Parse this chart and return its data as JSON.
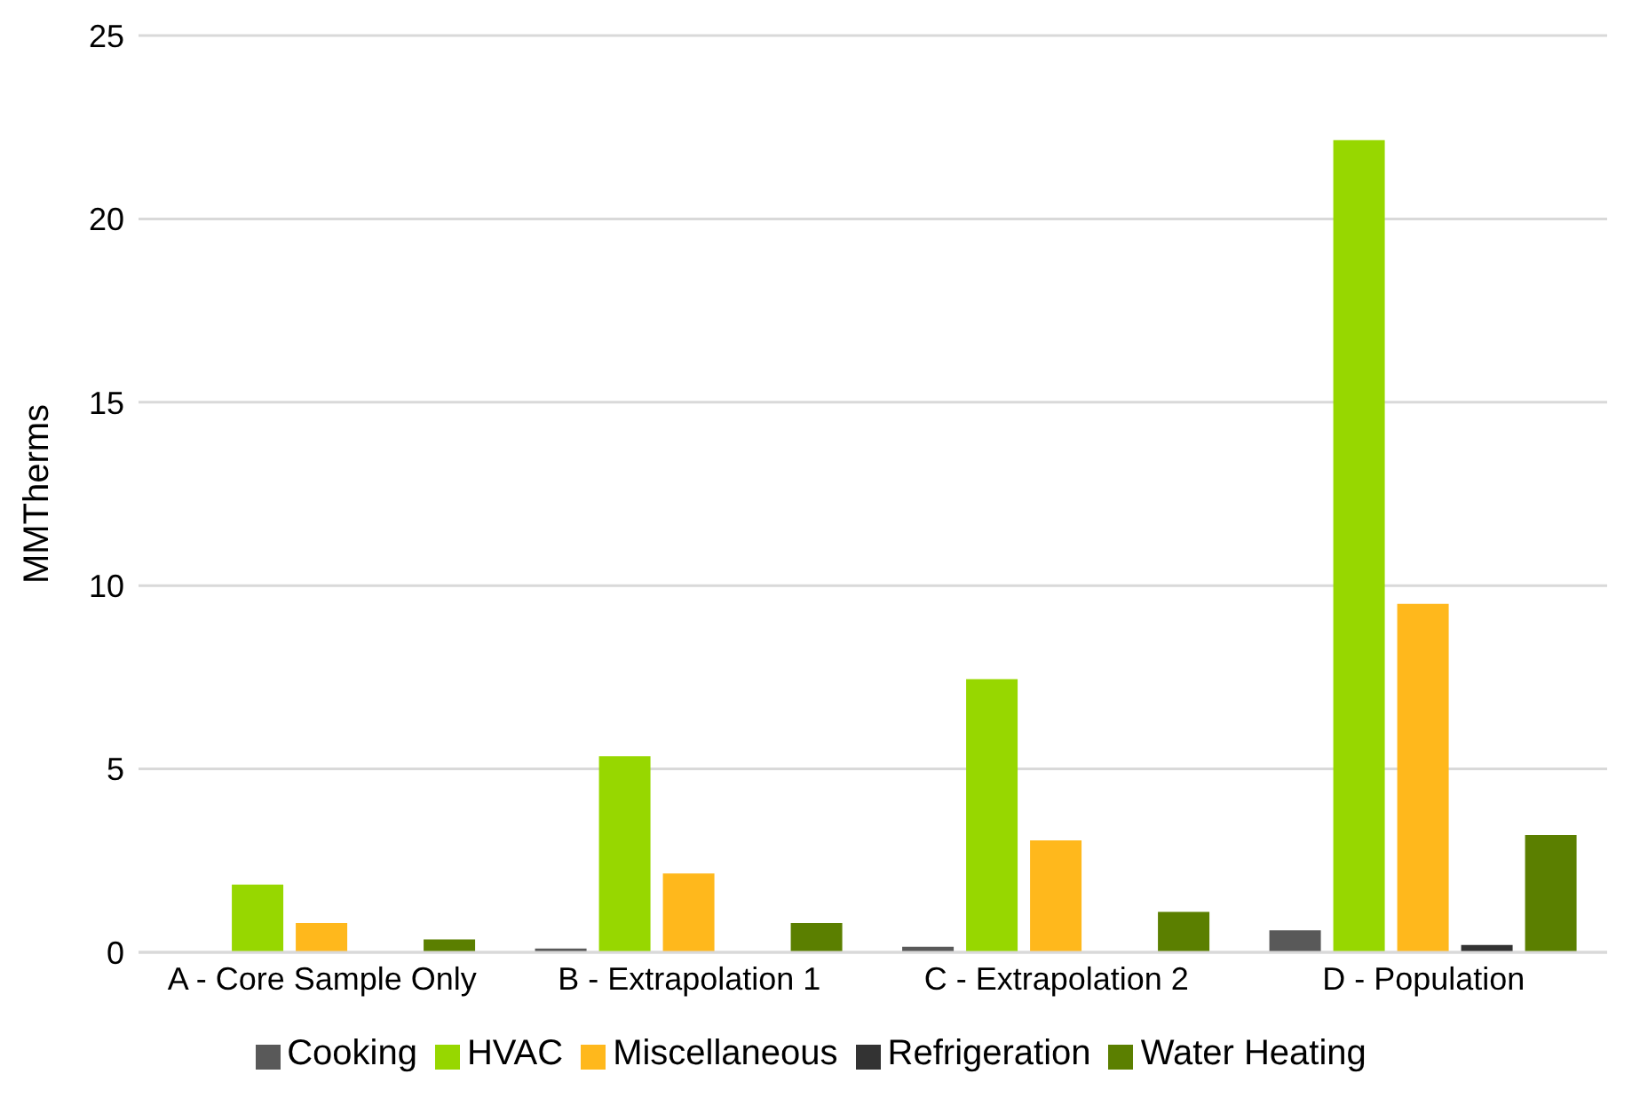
{
  "chart_data": {
    "type": "bar",
    "ylabel": "MMTherms",
    "categories": [
      "A - Core Sample Only",
      "B - Extrapolation 1",
      "C - Extrapolation 2",
      "D - Population"
    ],
    "series": [
      {
        "name": "Cooking",
        "color": "#595959",
        "values": [
          null,
          0.1,
          0.15,
          0.6
        ]
      },
      {
        "name": "HVAC",
        "color": "#97d700",
        "values": [
          1.85,
          5.35,
          7.45,
          22.15
        ]
      },
      {
        "name": "Miscellaneous",
        "color": "#ffb81c",
        "values": [
          0.8,
          2.15,
          3.05,
          9.5
        ]
      },
      {
        "name": "Refrigeration",
        "color": "#333333",
        "values": [
          0,
          null,
          null,
          0.2
        ]
      },
      {
        "name": "Water Heating",
        "color": "#5b7f00",
        "values": [
          0.35,
          0.8,
          1.1,
          3.2
        ]
      }
    ],
    "ylim": [
      0,
      25
    ],
    "yticks": [
      0,
      5,
      10,
      15,
      20,
      25
    ],
    "grid": "y",
    "legend": "bottom"
  }
}
